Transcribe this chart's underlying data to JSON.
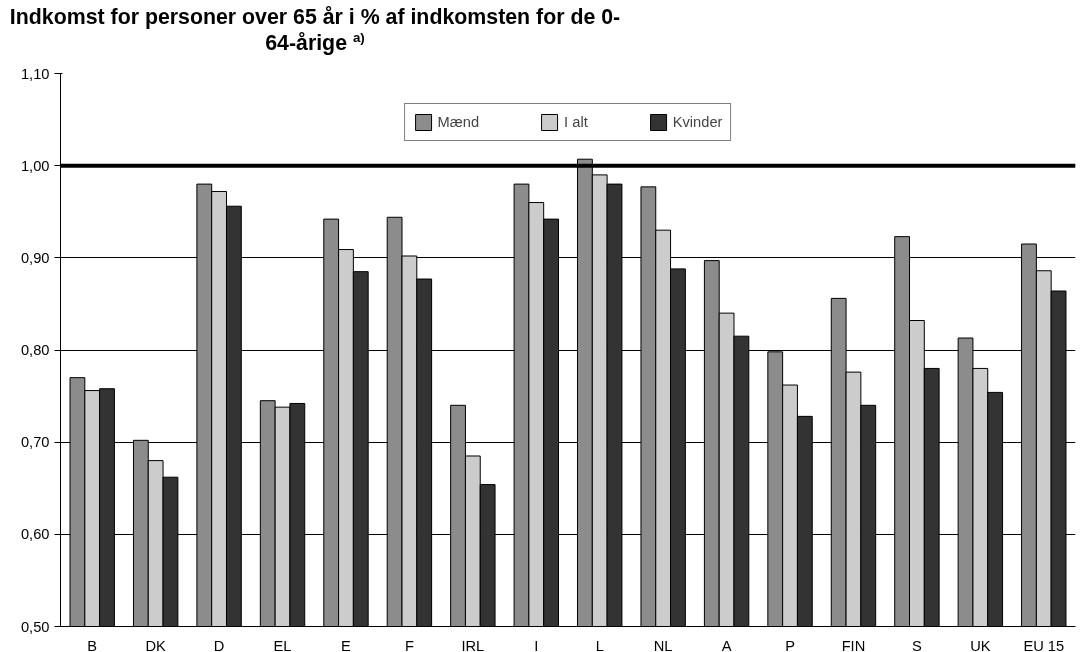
{
  "chart_data": {
    "type": "bar",
    "title": "Indkomst for personer over 65 år i % af indkomsten for de 0-64-årige $^{a)}$",
    "categories": [
      "B",
      "DK",
      "D",
      "EL",
      "E",
      "F",
      "IRL",
      "I",
      "L",
      "NL",
      "A",
      "P",
      "FIN",
      "S",
      "UK",
      "EU 15"
    ],
    "series": [
      {
        "name": "Mænd",
        "color": "#8c8c8c",
        "values": [
          0.77,
          0.702,
          0.98,
          0.745,
          0.942,
          0.944,
          0.74,
          0.98,
          1.007,
          0.977,
          0.897,
          0.798,
          0.856,
          0.923,
          0.813,
          0.915
        ]
      },
      {
        "name": "I alt",
        "color": "#cccccc",
        "values": [
          0.756,
          0.68,
          0.972,
          0.738,
          0.909,
          0.902,
          0.685,
          0.96,
          0.99,
          0.93,
          0.84,
          0.762,
          0.776,
          0.832,
          0.78,
          0.886
        ]
      },
      {
        "name": "Kvinder",
        "color": "#333333",
        "values": [
          0.758,
          0.662,
          0.956,
          0.742,
          0.885,
          0.877,
          0.654,
          0.942,
          0.98,
          0.888,
          0.815,
          0.728,
          0.74,
          0.78,
          0.754,
          0.864
        ]
      }
    ],
    "ylim": [
      0.5,
      1.1
    ],
    "yticks": [
      {
        "value": 0.5,
        "label": "0,50"
      },
      {
        "value": 0.6,
        "label": "0,60"
      },
      {
        "value": 0.7,
        "label": "0,70"
      },
      {
        "value": 0.8,
        "label": "0,80"
      },
      {
        "value": 0.9,
        "label": "0,90"
      },
      {
        "value": 1.0,
        "label": "1,00"
      },
      {
        "value": 1.1,
        "label": "1,10"
      }
    ],
    "ref_lines": [
      {
        "axis": "y",
        "value": 1.0,
        "color": "#000000"
      }
    ],
    "grid": "y",
    "legend": "top"
  }
}
